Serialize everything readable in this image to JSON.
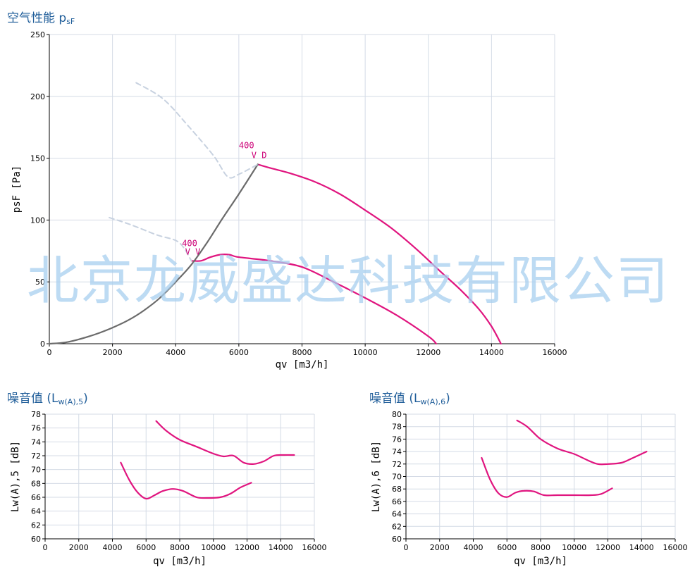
{
  "titles": {
    "main": "空气性能 p",
    "main_sub": "sF",
    "noise5": "噪音值 (L",
    "noise5_sub": "w(A),5",
    "noise5_close": ")",
    "noise6": "噪音值 (L",
    "noise6_sub": "w(A),6",
    "noise6_close": ")"
  },
  "watermark": "北京龙威盛达科技有限公司",
  "colors": {
    "magenta": "#e0157f",
    "gray": "#6b6b6b",
    "dashed": "#c8d2e0",
    "grid": "#d4dbe6",
    "title": "#1f5d99"
  },
  "chart_data": [
    {
      "type": "line",
      "xlabel": "qv [m3/h]",
      "ylabel": "psF [Pa]",
      "xlim": [
        0,
        16000
      ],
      "ylim": [
        0,
        250
      ],
      "xticks": [
        0,
        2000,
        4000,
        6000,
        8000,
        10000,
        12000,
        14000,
        16000
      ],
      "yticks": [
        0,
        50,
        100,
        150,
        200,
        250
      ],
      "annotations": [
        {
          "text": "400",
          "x": 6000,
          "y": 158
        },
        {
          "text": "V D",
          "x": 6400,
          "y": 150
        },
        {
          "text": "400",
          "x": 4200,
          "y": 79
        },
        {
          "text": "V V",
          "x": 4300,
          "y": 72
        }
      ],
      "series": [
        {
          "style": "magenta",
          "x": [
            6600,
            7000,
            7600,
            8400,
            9200,
            10000,
            10800,
            11600,
            12400,
            13000,
            13600,
            14000,
            14300
          ],
          "y": [
            145,
            142,
            138,
            131,
            121,
            108,
            94,
            77,
            58,
            44,
            28,
            14,
            0
          ]
        },
        {
          "style": "magenta",
          "x": [
            4500,
            4800,
            5100,
            5400,
            5700,
            6000,
            7000,
            8000,
            9000,
            10000,
            11000,
            12000,
            12250
          ],
          "y": [
            67,
            67,
            70,
            72,
            72,
            70,
            67,
            62,
            50,
            37,
            23,
            6,
            0
          ]
        },
        {
          "style": "gray",
          "x": [
            0,
            500,
            1000,
            1500,
            2000,
            2500,
            3000,
            3500,
            4000,
            4500,
            5000,
            5500,
            6000,
            6600
          ],
          "y": [
            0,
            1,
            4,
            8,
            13,
            19,
            27,
            37,
            50,
            64,
            82,
            102,
            121,
            145
          ]
        },
        {
          "style": "dashed",
          "x": [
            2750,
            3600,
            4400,
            5200,
            5650,
            6000,
            6600
          ],
          "y": [
            211,
            198,
            176,
            152,
            135,
            137,
            145
          ]
        },
        {
          "style": "dashed",
          "x": [
            1900,
            2600,
            3400,
            4100,
            4500
          ],
          "y": [
            102,
            96,
            88,
            82,
            67
          ]
        }
      ]
    },
    {
      "type": "line",
      "xlabel": "qv [m3/h]",
      "ylabel": "Lw(A),5 [dB]",
      "xlim": [
        0,
        16000
      ],
      "ylim": [
        60,
        78
      ],
      "xticks": [
        0,
        2000,
        4000,
        6000,
        8000,
        10000,
        12000,
        14000,
        16000
      ],
      "yticks": [
        60,
        62,
        64,
        66,
        68,
        70,
        72,
        74,
        76,
        78
      ],
      "series": [
        {
          "style": "magenta",
          "x": [
            6600,
            7200,
            8000,
            9000,
            10000,
            10600,
            11200,
            11800,
            12400,
            13000,
            13600,
            14200,
            14800
          ],
          "y": [
            77,
            75.6,
            74.3,
            73.3,
            72.3,
            71.9,
            72,
            71,
            70.8,
            71.2,
            72,
            72.1,
            72.1
          ]
        },
        {
          "style": "magenta",
          "x": [
            4500,
            5000,
            5500,
            6000,
            6500,
            7000,
            7600,
            8200,
            9000,
            9600,
            10400,
            11000,
            11600,
            12250
          ],
          "y": [
            71,
            68.5,
            66.7,
            65.8,
            66.3,
            66.9,
            67.2,
            66.9,
            66,
            65.9,
            66,
            66.5,
            67.4,
            68.1
          ]
        }
      ]
    },
    {
      "type": "line",
      "xlabel": "qv [m3/h]",
      "ylabel": "Lw(A),6 [dB]",
      "xlim": [
        0,
        16000
      ],
      "ylim": [
        60,
        80
      ],
      "xticks": [
        0,
        2000,
        4000,
        6000,
        8000,
        10000,
        12000,
        14000,
        16000
      ],
      "yticks": [
        60,
        62,
        64,
        66,
        68,
        70,
        72,
        74,
        76,
        78,
        80
      ],
      "series": [
        {
          "style": "magenta",
          "x": [
            6600,
            7200,
            8000,
            9000,
            10000,
            10800,
            11400,
            12000,
            12800,
            13500,
            14300
          ],
          "y": [
            79,
            78,
            76,
            74.5,
            73.6,
            72.6,
            72,
            72,
            72.2,
            73,
            74
          ]
        },
        {
          "style": "magenta",
          "x": [
            4500,
            5000,
            5500,
            6000,
            6500,
            7000,
            7600,
            8200,
            9000,
            10000,
            11000,
            11600,
            12250
          ],
          "y": [
            73,
            69.5,
            67.3,
            66.7,
            67.4,
            67.7,
            67.6,
            67,
            67,
            67,
            67,
            67.2,
            68.1
          ]
        }
      ]
    }
  ]
}
